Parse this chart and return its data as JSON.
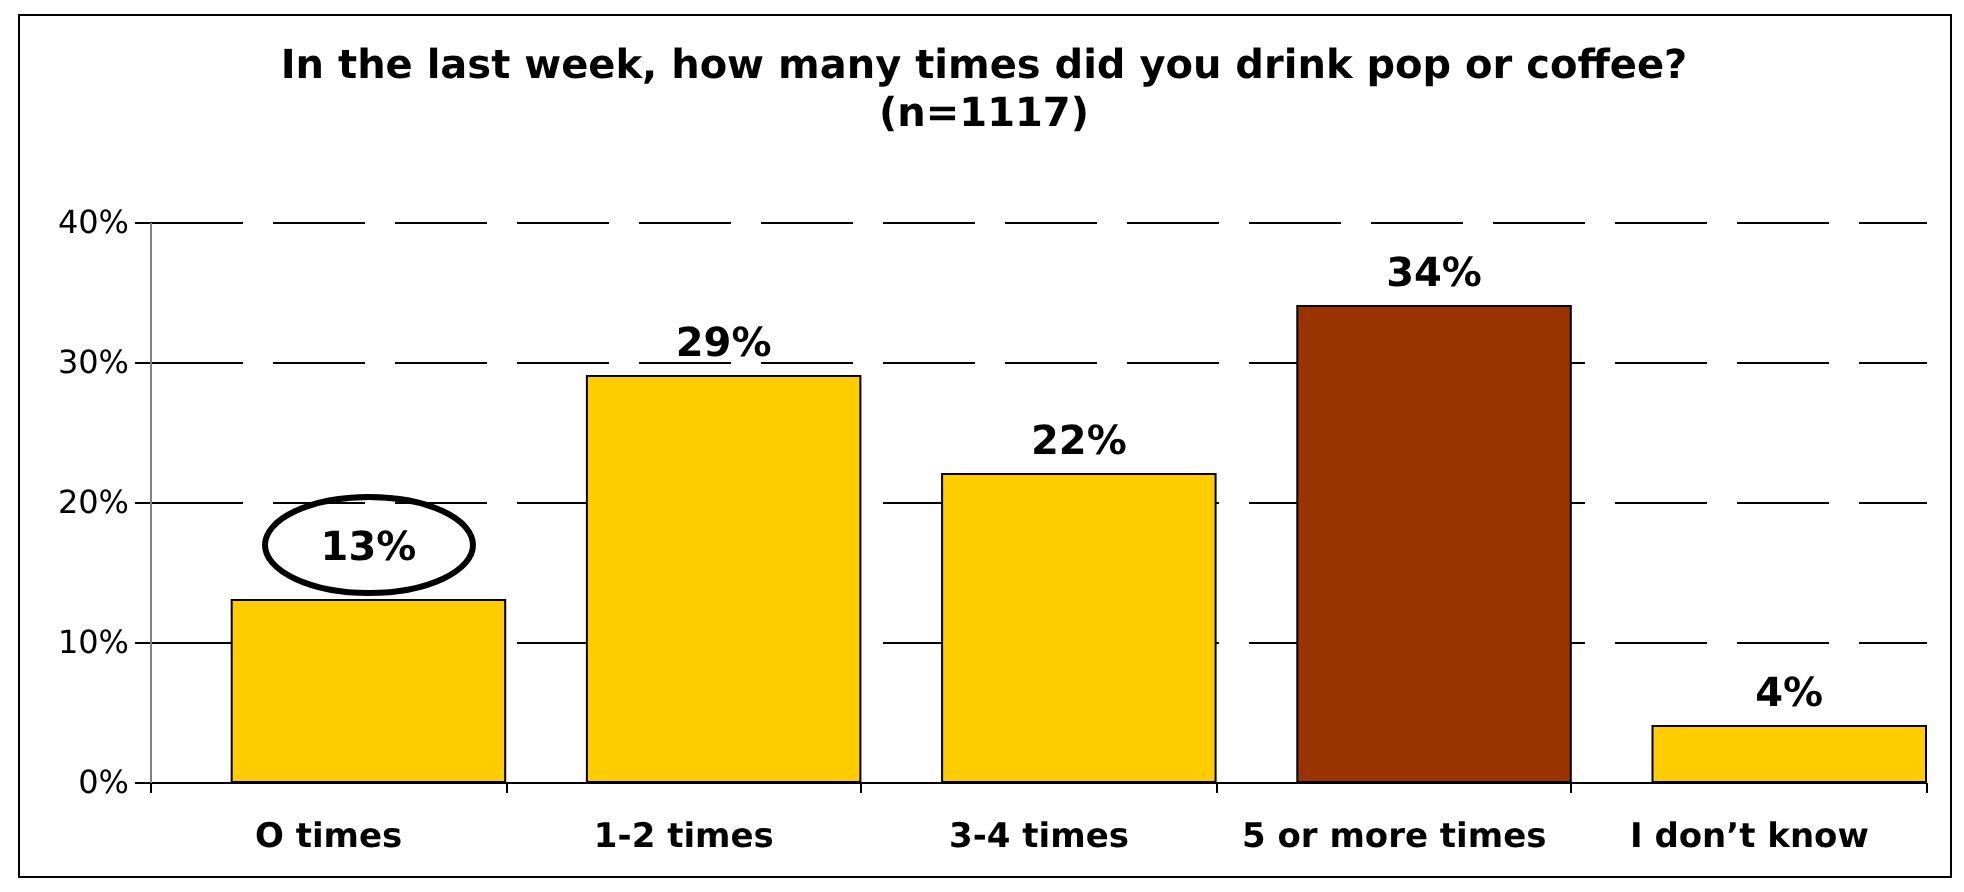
{
  "chart_data": {
    "type": "bar",
    "title": "In the last week, how many times did you drink pop or coffee?",
    "subtitle": "(n=1117)",
    "categories": [
      "O times",
      "1-2 times",
      "3-4 times",
      "5 or more times",
      "I don’t know"
    ],
    "values": [
      13,
      29,
      22,
      34,
      4
    ],
    "value_labels": [
      "13%",
      "29%",
      "22%",
      "34%",
      "4%"
    ],
    "colors": [
      "#ffcc00",
      "#ffcc00",
      "#ffcc00",
      "#993300",
      "#ffcc00"
    ],
    "ylim": [
      0,
      40
    ],
    "yticks": [
      {
        "value": 0,
        "label": "0%"
      },
      {
        "value": 10,
        "label": "10%"
      },
      {
        "value": 20,
        "label": "20%"
      },
      {
        "value": 30,
        "label": "30%"
      },
      {
        "value": 40,
        "label": "40%"
      }
    ],
    "grid": "y"
  }
}
